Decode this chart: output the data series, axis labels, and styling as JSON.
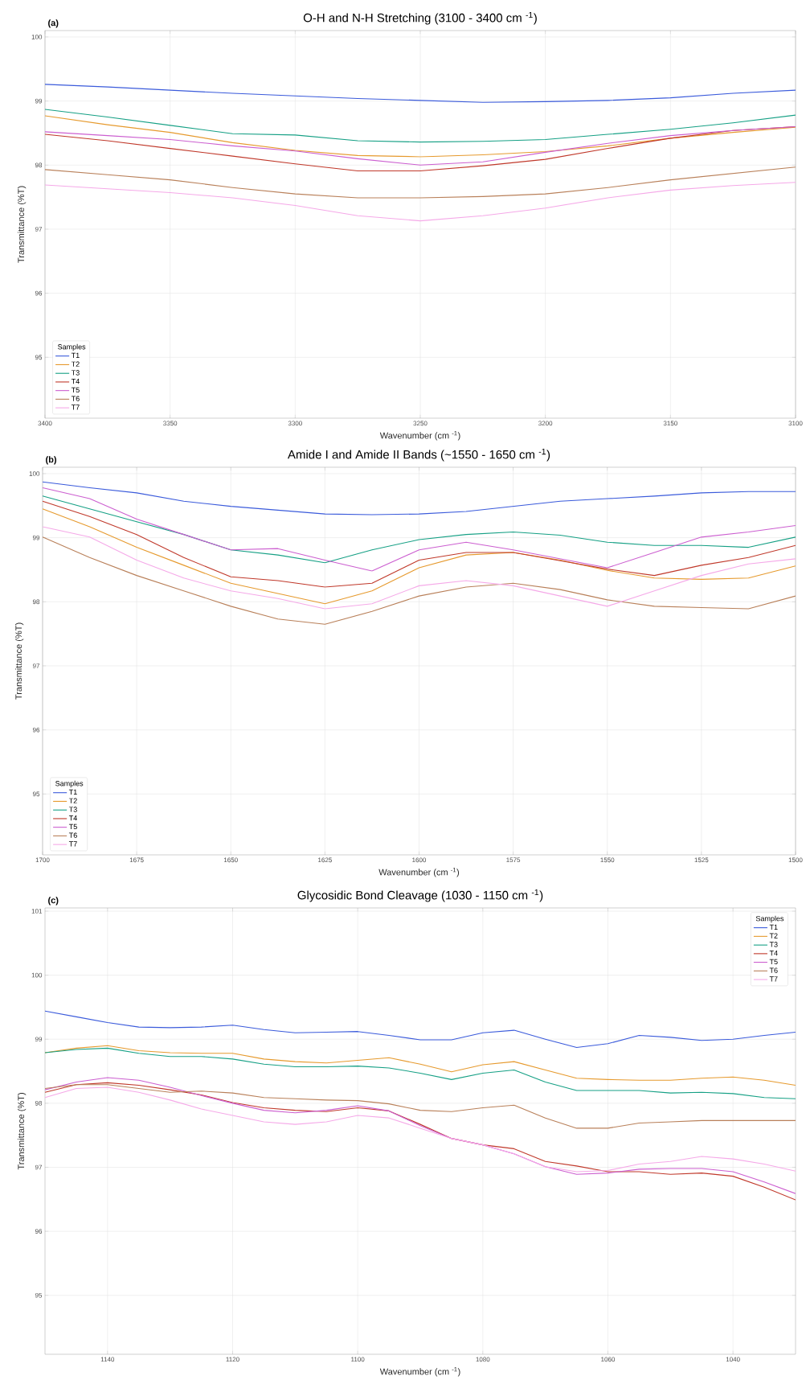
{
  "chart_data": [
    {
      "type": "line",
      "title": "O-H and N-H Stretching (3100 - 3400 cm $^{-1}$)",
      "xlabel": "Wavenumber (cm $^{-1}$)",
      "ylabel": "Transmittance (%T)",
      "legend_title": "Samples",
      "annotations": [
        "(a)"
      ],
      "x": [
        3400,
        3375,
        3350,
        3325,
        3300,
        3275,
        3250,
        3225,
        3200,
        3175,
        3150,
        3125,
        3100
      ],
      "series": [
        {
          "name": "T1",
          "color": "#3b5bdb",
          "values": [
            99.26,
            99.22,
            99.17,
            99.12,
            99.08,
            99.04,
            99.01,
            98.98,
            98.99,
            99.01,
            99.05,
            99.12,
            99.17
          ]
        },
        {
          "name": "T2",
          "color": "#e69a2e",
          "values": [
            98.77,
            98.63,
            98.51,
            98.35,
            98.23,
            98.15,
            98.13,
            98.16,
            98.21,
            98.3,
            98.42,
            98.51,
            98.59
          ]
        },
        {
          "name": "T3",
          "color": "#16a085",
          "values": [
            98.87,
            98.75,
            98.62,
            98.49,
            98.47,
            98.38,
            98.36,
            98.37,
            98.4,
            98.48,
            98.56,
            98.66,
            98.78
          ]
        },
        {
          "name": "T4",
          "color": "#c0392b",
          "values": [
            98.48,
            98.38,
            98.26,
            98.14,
            98.02,
            97.91,
            97.91,
            97.99,
            98.09,
            98.26,
            98.42,
            98.54,
            98.6
          ]
        },
        {
          "name": "T5",
          "color": "#cc5fd0",
          "values": [
            98.52,
            98.46,
            98.4,
            98.3,
            98.22,
            98.1,
            98.0,
            98.05,
            98.2,
            98.34,
            98.46,
            98.54,
            98.6
          ]
        },
        {
          "name": "T6",
          "color": "#b9805a",
          "values": [
            97.93,
            97.85,
            97.77,
            97.65,
            97.55,
            97.49,
            97.49,
            97.51,
            97.55,
            97.65,
            97.77,
            97.87,
            97.97
          ]
        },
        {
          "name": "T7",
          "color": "#f5a9e8",
          "values": [
            97.69,
            97.63,
            97.57,
            97.49,
            97.37,
            97.21,
            97.13,
            97.21,
            97.33,
            97.49,
            97.61,
            97.68,
            97.73
          ]
        }
      ],
      "xlim": [
        3400,
        3100
      ],
      "ylim": [
        94.05,
        100.1
      ],
      "xticks": [
        3400,
        3350,
        3300,
        3250,
        3200,
        3150,
        3100
      ],
      "yticks": [
        95,
        96,
        97,
        98,
        99,
        100
      ],
      "grid": true,
      "legend": "bottom left"
    },
    {
      "type": "line",
      "title": "Amide I and Amide II Bands (~1550 - 1650 cm $^{-1}$)",
      "xlabel": "Wavenumber (cm $^{-1}$)",
      "ylabel": "Transmittance (%T)",
      "legend_title": "Samples",
      "annotations": [
        "(b)"
      ],
      "x": [
        1700,
        1687.5,
        1675,
        1662.5,
        1650,
        1637.5,
        1625,
        1612.5,
        1600,
        1587.5,
        1575,
        1562.5,
        1550,
        1537.5,
        1525,
        1512.5,
        1500
      ],
      "series": [
        {
          "name": "T1",
          "color": "#3b5bdb",
          "values": [
            99.87,
            99.78,
            99.7,
            99.57,
            99.49,
            99.43,
            99.37,
            99.36,
            99.37,
            99.41,
            99.49,
            99.57,
            99.61,
            99.65,
            99.7,
            99.72,
            99.72
          ]
        },
        {
          "name": "T2",
          "color": "#e69a2e",
          "values": [
            99.45,
            99.17,
            98.85,
            98.57,
            98.29,
            98.13,
            97.97,
            98.17,
            98.53,
            98.73,
            98.77,
            98.65,
            98.49,
            98.37,
            98.35,
            98.37,
            98.56
          ]
        },
        {
          "name": "T3",
          "color": "#16a085",
          "values": [
            99.65,
            99.45,
            99.25,
            99.05,
            98.81,
            98.73,
            98.61,
            98.81,
            98.97,
            99.05,
            99.09,
            99.04,
            98.93,
            98.88,
            98.88,
            98.85,
            99.01
          ]
        },
        {
          "name": "T4",
          "color": "#c0392b",
          "values": [
            99.57,
            99.33,
            99.05,
            98.69,
            98.39,
            98.33,
            98.23,
            98.29,
            98.65,
            98.77,
            98.77,
            98.64,
            98.51,
            98.41,
            98.57,
            98.69,
            98.88
          ]
        },
        {
          "name": "T5",
          "color": "#cc5fd0",
          "values": [
            99.78,
            99.61,
            99.29,
            99.05,
            98.81,
            98.83,
            98.65,
            98.48,
            98.81,
            98.93,
            98.81,
            98.67,
            98.53,
            98.77,
            99.01,
            99.09,
            99.19
          ]
        },
        {
          "name": "T6",
          "color": "#b9805a",
          "values": [
            99.01,
            98.69,
            98.41,
            98.17,
            97.93,
            97.73,
            97.65,
            97.85,
            98.09,
            98.23,
            98.29,
            98.19,
            98.03,
            97.93,
            97.91,
            97.89,
            98.09
          ]
        },
        {
          "name": "T7",
          "color": "#f5a9e8",
          "values": [
            99.17,
            99.01,
            98.65,
            98.37,
            98.17,
            98.05,
            97.89,
            97.97,
            98.25,
            98.33,
            98.25,
            98.09,
            97.93,
            98.17,
            98.41,
            98.59,
            98.67
          ]
        }
      ],
      "xlim": [
        1700,
        1500
      ],
      "ylim": [
        94.05,
        100.1
      ],
      "xticks": [
        1700,
        1675,
        1650,
        1625,
        1600,
        1575,
        1550,
        1525,
        1500
      ],
      "yticks": [
        95,
        96,
        97,
        98,
        99,
        100
      ],
      "grid": true,
      "legend": "bottom left"
    },
    {
      "type": "line",
      "title": "Glycosidic Bond Cleavage (1030 - 1150 cm $^{-1}$)",
      "xlabel": "Wavenumber (cm $^{-1}$)",
      "ylabel": "Transmittance (%T)",
      "legend_title": "Samples",
      "annotations": [
        "(c)"
      ],
      "x": [
        1150,
        1145,
        1140,
        1135,
        1130,
        1125,
        1120,
        1115,
        1110,
        1105,
        1100,
        1095,
        1090,
        1085,
        1080,
        1075,
        1070,
        1065,
        1060,
        1055,
        1050,
        1045,
        1040,
        1035,
        1030
      ],
      "series": [
        {
          "name": "T1",
          "color": "#3b5bdb",
          "values": [
            99.44,
            99.35,
            99.26,
            99.19,
            99.18,
            99.19,
            99.22,
            99.15,
            99.1,
            99.11,
            99.12,
            99.06,
            98.99,
            98.99,
            99.1,
            99.14,
            99.0,
            98.87,
            98.93,
            99.06,
            99.03,
            98.98,
            99.0,
            99.06,
            99.11
          ]
        },
        {
          "name": "T2",
          "color": "#e69a2e",
          "values": [
            98.79,
            98.86,
            98.9,
            98.82,
            98.79,
            98.78,
            98.78,
            98.69,
            98.65,
            98.63,
            98.67,
            98.71,
            98.61,
            98.49,
            98.6,
            98.65,
            98.52,
            98.39,
            98.37,
            98.36,
            98.36,
            98.39,
            98.41,
            98.36,
            98.28
          ]
        },
        {
          "name": "T3",
          "color": "#16a085",
          "values": [
            98.79,
            98.84,
            98.86,
            98.78,
            98.73,
            98.73,
            98.69,
            98.61,
            98.57,
            98.57,
            98.58,
            98.55,
            98.47,
            98.37,
            98.47,
            98.52,
            98.33,
            98.2,
            98.2,
            98.2,
            98.16,
            98.17,
            98.15,
            98.09,
            98.07
          ]
        },
        {
          "name": "T4",
          "color": "#c0392b",
          "values": [
            98.17,
            98.29,
            98.32,
            98.28,
            98.21,
            98.13,
            98.01,
            97.93,
            97.89,
            97.87,
            97.93,
            97.88,
            97.67,
            97.45,
            97.35,
            97.29,
            97.09,
            97.02,
            96.93,
            96.93,
            96.89,
            96.91,
            96.86,
            96.69,
            96.49
          ]
        },
        {
          "name": "T5",
          "color": "#cc5fd0",
          "values": [
            98.21,
            98.33,
            98.4,
            98.36,
            98.25,
            98.12,
            98.0,
            97.89,
            97.85,
            97.89,
            97.96,
            97.88,
            97.65,
            97.45,
            97.35,
            97.21,
            97.01,
            96.89,
            96.91,
            96.97,
            96.98,
            96.98,
            96.93,
            96.77,
            96.59
          ]
        },
        {
          "name": "T6",
          "color": "#b9805a",
          "values": [
            98.23,
            98.29,
            98.29,
            98.23,
            98.17,
            98.19,
            98.16,
            98.09,
            98.07,
            98.05,
            98.04,
            97.99,
            97.89,
            97.87,
            97.93,
            97.97,
            97.77,
            97.61,
            97.61,
            97.69,
            97.71,
            97.73,
            97.73,
            97.73,
            97.73
          ]
        },
        {
          "name": "T7",
          "color": "#f5a9e8",
          "values": [
            98.09,
            98.23,
            98.25,
            98.17,
            98.05,
            97.91,
            97.81,
            97.71,
            97.67,
            97.71,
            97.81,
            97.77,
            97.61,
            97.45,
            97.35,
            97.21,
            97.01,
            96.93,
            96.95,
            97.05,
            97.09,
            97.17,
            97.13,
            97.05,
            96.94
          ]
        }
      ],
      "xlim": [
        1150,
        1030
      ],
      "ylim": [
        94.08,
        101.05
      ],
      "xticks": [
        1140,
        1120,
        1100,
        1080,
        1060,
        1040
      ],
      "yticks": [
        95,
        96,
        97,
        98,
        99,
        100,
        101
      ],
      "grid": true,
      "legend": "top right"
    }
  ]
}
